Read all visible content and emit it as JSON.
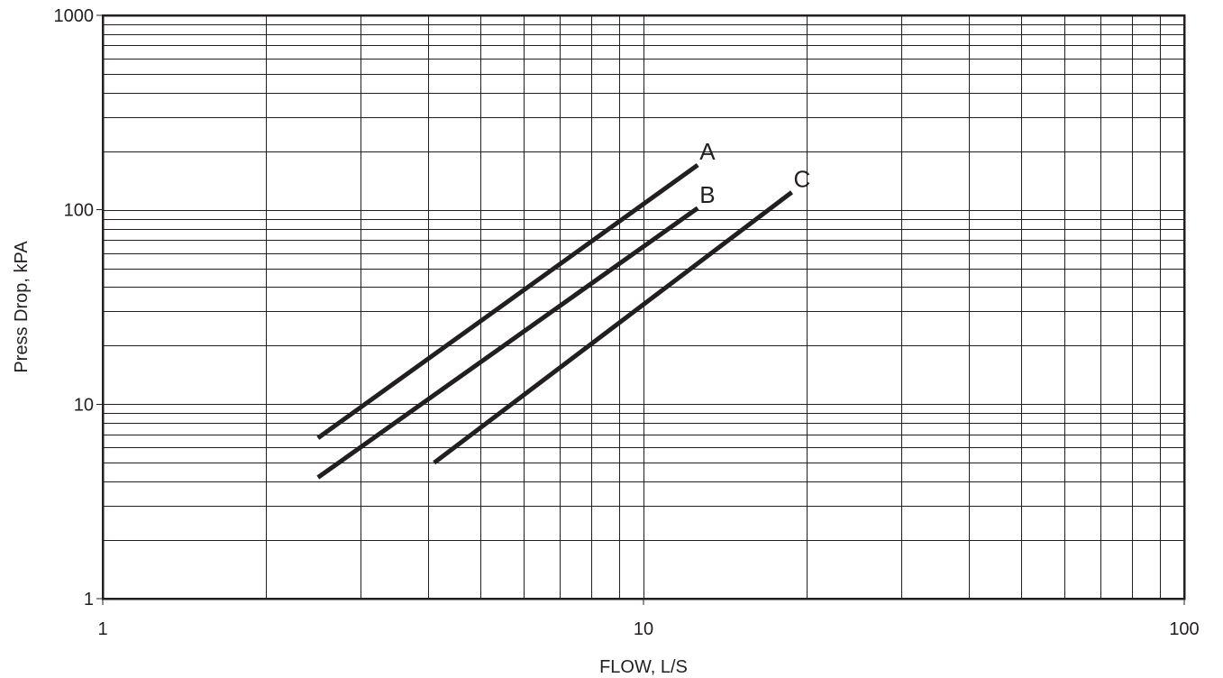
{
  "chart_data": {
    "type": "line",
    "title": "",
    "xlabel": "FLOW, L/S",
    "ylabel": "Press Drop, kPA",
    "xscale": "log",
    "yscale": "log",
    "xlim": [
      1,
      100
    ],
    "ylim": [
      1,
      1000
    ],
    "grid": true,
    "x_ticks": [
      {
        "value": 1,
        "label": "1"
      },
      {
        "value": 10,
        "label": "10"
      },
      {
        "value": 100,
        "label": "100"
      }
    ],
    "y_ticks": [
      {
        "value": 1,
        "label": "1"
      },
      {
        "value": 10,
        "label": "10"
      },
      {
        "value": 100,
        "label": "100"
      },
      {
        "value": 1000,
        "label": "1000"
      }
    ],
    "series": [
      {
        "name": "A",
        "x": [
          2.5,
          12.6
        ],
        "y": [
          6.7,
          170
        ]
      },
      {
        "name": "B",
        "x": [
          2.5,
          12.6
        ],
        "y": [
          4.2,
          102
        ]
      },
      {
        "name": "C",
        "x": [
          4.1,
          18.8
        ],
        "y": [
          5.0,
          123
        ]
      }
    ],
    "line_color": "#231f20"
  }
}
